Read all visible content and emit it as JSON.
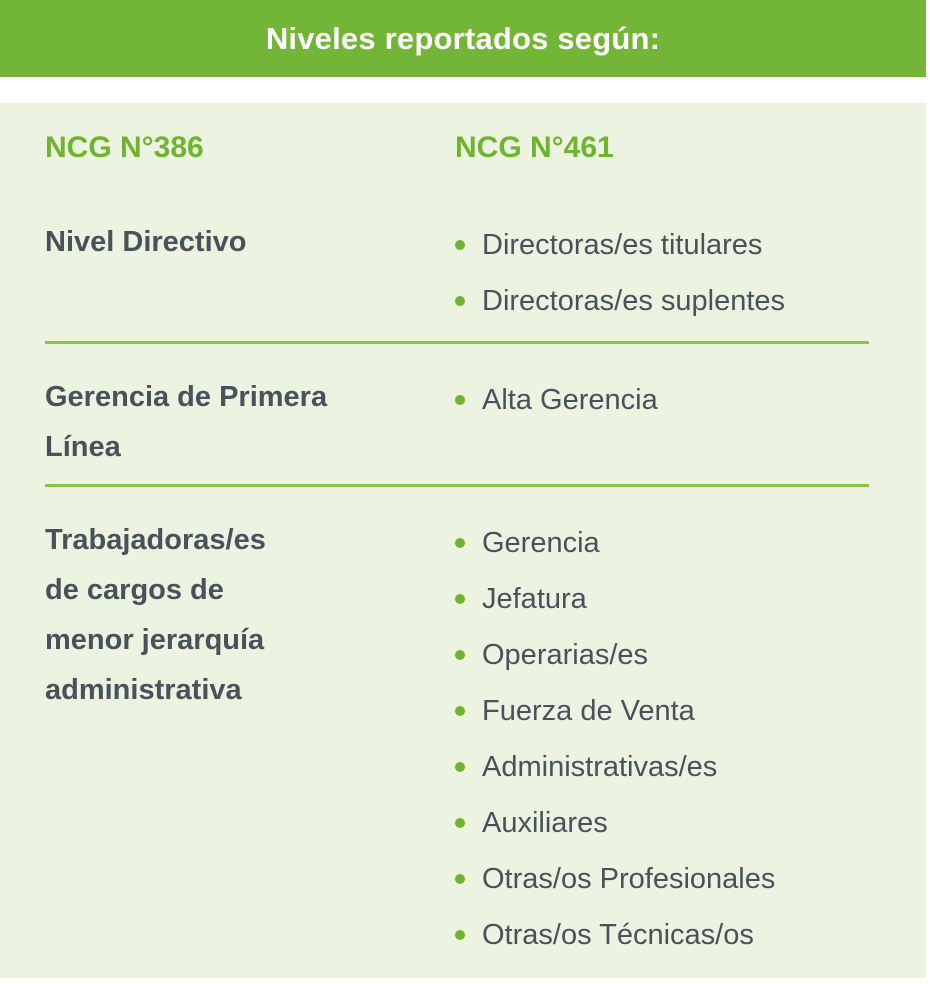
{
  "banner": {
    "title": "Niveles reportados según:"
  },
  "table": {
    "columns": [
      {
        "label": "NCG N°386"
      },
      {
        "label": "NCG N°461"
      }
    ],
    "rows": [
      {
        "ncg386": "Nivel Directivo",
        "ncg461": [
          "Directoras/es titulares",
          "Directoras/es suplentes"
        ]
      },
      {
        "ncg386": "Gerencia de Primera\nLínea",
        "ncg461": [
          "Alta Gerencia"
        ]
      },
      {
        "ncg386": "Trabajadoras/es\nde cargos de\nmenor jerarquía\nadministrativa",
        "ncg461": [
          "Gerencia",
          "Jefatura",
          "Operarias/es",
          "Fuerza de Venta",
          "Administrativas/es",
          "Auxiliares",
          "Otras/os Profesionales",
          "Otras/os Técnicas/os"
        ]
      }
    ]
  },
  "colors": {
    "banner_green": "#73B637",
    "panel_background": "#ECF3E1",
    "accent_green": "#6EB42E",
    "divider_green": "#8BC53F",
    "text_dark": "#47525A",
    "banner_text": "#FFFFFF"
  }
}
